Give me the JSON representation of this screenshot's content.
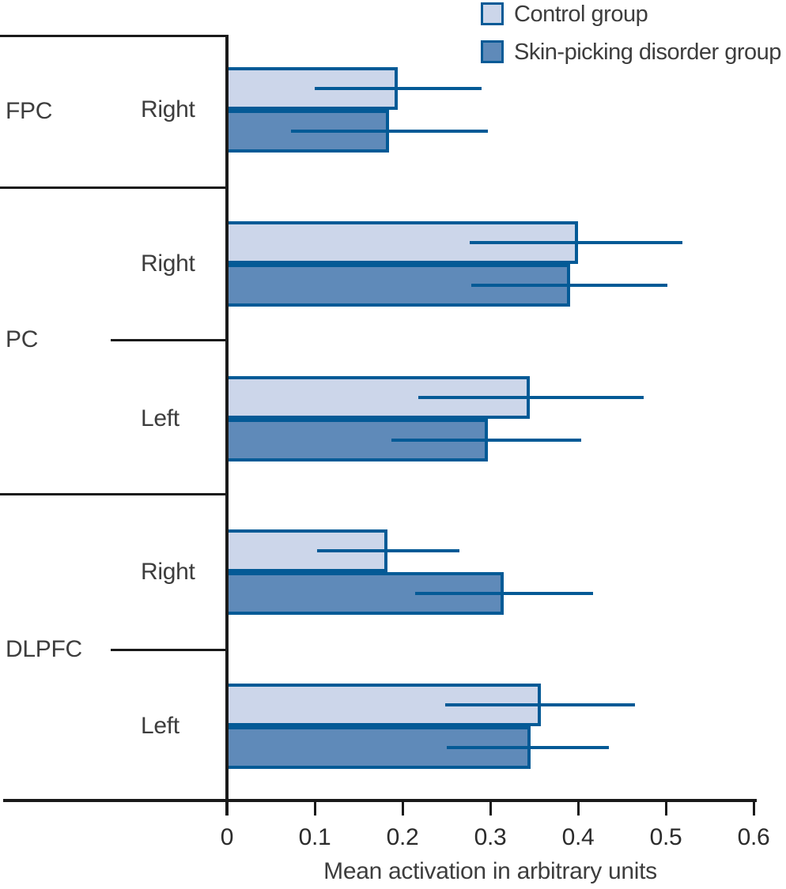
{
  "legend": {
    "items": [
      {
        "label": "Control group"
      },
      {
        "label": "Skin-picking disorder group"
      }
    ]
  },
  "colors": {
    "control_fill": "#ccd6ea",
    "spd_fill": "#5f8ab9",
    "bar_border": "#045a96",
    "error_bar": "#045a96",
    "axis_line": "#1a1a1a",
    "text": "#3d3d3d"
  },
  "chart_data": {
    "type": "bar",
    "orientation": "horizontal",
    "title": "",
    "xlabel": "Mean activation in arbitrary units",
    "ylabel": "",
    "xlim": [
      0,
      0.6
    ],
    "xticks": [
      "0",
      "0.1",
      "0.2",
      "0.3",
      "0.4",
      "0.5",
      "0.6"
    ],
    "grid": false,
    "legend_position": "top-right",
    "series_names": [
      "Control group",
      "Skin-picking disorder group"
    ],
    "error_bars": "horizontal, no caps",
    "groups": [
      {
        "region": "FPC",
        "rows": [
          {
            "hemisphere": "Right",
            "bars": [
              {
                "series": "Control group",
                "value": 0.195,
                "ci": [
                  0.1,
                  0.29
                ]
              },
              {
                "series": "Skin-picking disorder group",
                "value": 0.185,
                "ci": [
                  0.073,
                  0.297
                ]
              }
            ]
          }
        ]
      },
      {
        "region": "PC",
        "rows": [
          {
            "hemisphere": "Right",
            "bars": [
              {
                "series": "Control group",
                "value": 0.4,
                "ci": [
                  0.277,
                  0.519
                ]
              },
              {
                "series": "Skin-picking disorder group",
                "value": 0.391,
                "ci": [
                  0.278,
                  0.502
                ]
              }
            ]
          },
          {
            "hemisphere": "Left",
            "bars": [
              {
                "series": "Control group",
                "value": 0.345,
                "ci": [
                  0.218,
                  0.475
                ]
              },
              {
                "series": "Skin-picking disorder group",
                "value": 0.297,
                "ci": [
                  0.187,
                  0.404
                ]
              }
            ]
          }
        ]
      },
      {
        "region": "DLPFC",
        "rows": [
          {
            "hemisphere": "Right",
            "bars": [
              {
                "series": "Control group",
                "value": 0.183,
                "ci": [
                  0.103,
                  0.265
                ]
              },
              {
                "series": "Skin-picking disorder group",
                "value": 0.315,
                "ci": [
                  0.214,
                  0.417
                ]
              }
            ]
          },
          {
            "hemisphere": "Left",
            "bars": [
              {
                "series": "Control group",
                "value": 0.358,
                "ci": [
                  0.249,
                  0.465
                ]
              },
              {
                "series": "Skin-picking disorder group",
                "value": 0.346,
                "ci": [
                  0.25,
                  0.435
                ]
              }
            ]
          }
        ]
      }
    ]
  }
}
